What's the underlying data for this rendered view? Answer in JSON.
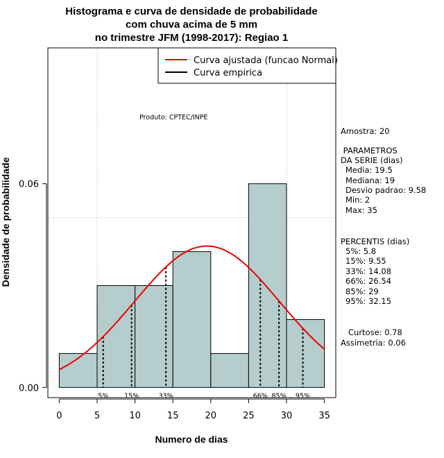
{
  "chart_data": {
    "type": "histogram",
    "title_lines": [
      "Histograma e curva de densidade de probabilidade",
      "com chuva acima de 5 mm",
      "no trimestre JFM (1998-2017): Regiao 1"
    ],
    "xlabel": "Numero de dias",
    "ylabel": "Densidade de probabilidade",
    "xlim": [
      -1.5,
      36.5
    ],
    "ylim": [
      -0.003,
      0.1
    ],
    "x_ticks": [
      0,
      5,
      10,
      15,
      20,
      25,
      30,
      35
    ],
    "x_tick_labels": [
      "0",
      "5",
      "10",
      "15",
      "20",
      "25",
      "30",
      "35"
    ],
    "y_ticks": [
      0.0,
      0.06
    ],
    "y_tick_labels": [
      "0.00",
      "0.06"
    ],
    "grid": {
      "x": [
        5,
        30
      ],
      "y": [
        0.05,
        0.1
      ]
    },
    "bin_edges": [
      0,
      5,
      10,
      15,
      20,
      25,
      30,
      35
    ],
    "bin_densities": [
      0.01,
      0.03,
      0.03,
      0.04,
      0.01,
      0.06,
      0.02
    ],
    "bar_color": "#b5cdcd",
    "normal_curve": {
      "mean": 19.5,
      "sd": 9.58,
      "x_range": [
        0,
        35
      ],
      "color": "#ee0000"
    },
    "percentile_lines": [
      {
        "label": "5%",
        "value": 5.8
      },
      {
        "label": "15%",
        "value": 9.55
      },
      {
        "label": "33%",
        "value": 14.08
      },
      {
        "label": "66%",
        "value": 26.54
      },
      {
        "label": "85%",
        "value": 29
      },
      {
        "label": "95%",
        "value": 32.15
      }
    ],
    "legend": {
      "placement": "top-right",
      "entries": [
        {
          "label": "Curva ajustada (funcao Normal)",
          "color": "#ee0000"
        },
        {
          "label": "Curva empirica",
          "color": "#000000"
        }
      ]
    },
    "annotation": "Produto: CPTEC/INPE",
    "side_panel": {
      "sample": "Amostra: 20",
      "params_title": [
        " PARAMETROS",
        "DA SERIE (dias)"
      ],
      "params": [
        "Media: 19.5",
        "Mediana: 19",
        "Desvio padrao: 9.58",
        "Min: 2",
        "Max: 35"
      ],
      "percentis_title": "PERCENTIS (dias)",
      "percentis": [
        "5%: 5.8",
        "15%: 9.55",
        "33%: 14.08",
        "66%: 26.54",
        "85%: 29",
        "95%: 32.15"
      ],
      "stats": [
        "Curtose: 0.78",
        "Assimetria: 0.06"
      ]
    }
  }
}
